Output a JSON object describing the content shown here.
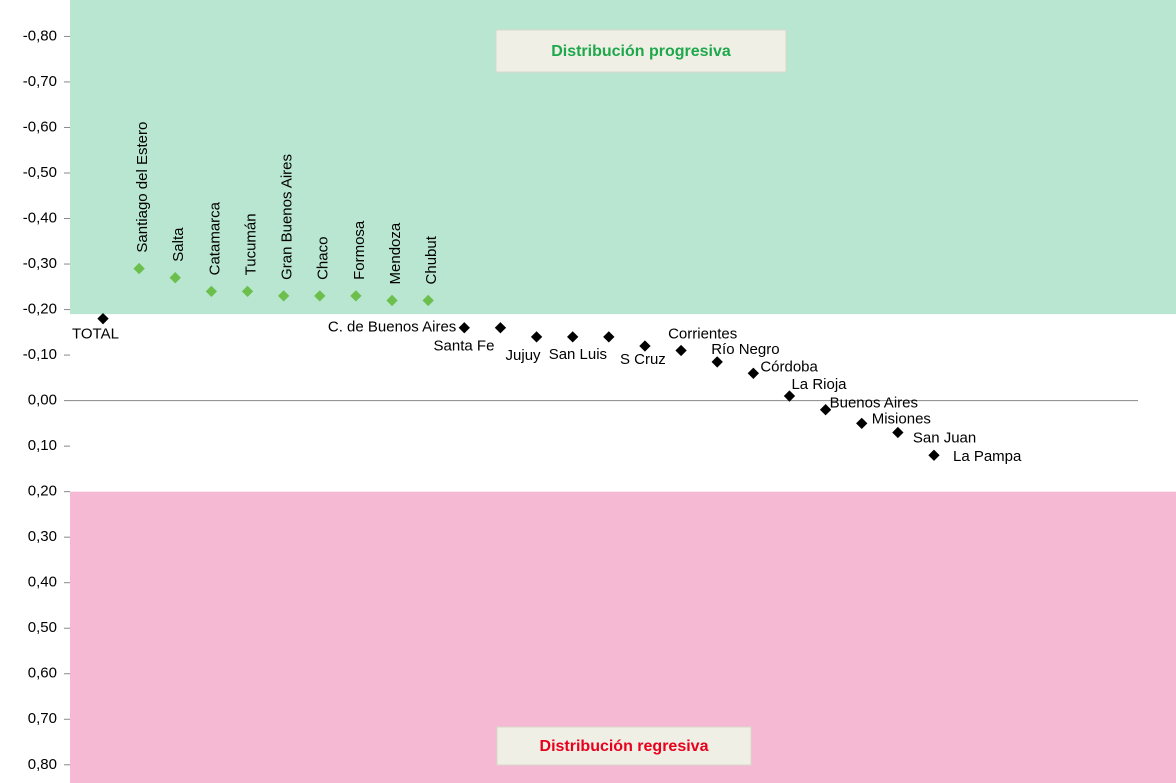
{
  "chart_data": {
    "type": "scatter",
    "categories": [
      "TOTAL",
      "Santiago del Estero",
      "Salta",
      "Catamarca",
      "Tucumán",
      "Gran Buenos Aires",
      "Chaco",
      "Formosa",
      "Mendoza",
      "Chubut",
      "C. de Buenos Aires",
      "Santa Fe",
      "Jujuy",
      "San Luis",
      null,
      "S Cruz",
      "Corrientes",
      "Río Negro",
      "Córdoba",
      "La Rioja",
      "Buenos Aires",
      "Misiones",
      "San Juan",
      "La Pampa"
    ],
    "series": [
      {
        "color": "#6cbf4c",
        "values": [
          null,
          -0.29,
          -0.27,
          -0.24,
          -0.24,
          -0.23,
          -0.23,
          -0.23,
          -0.22,
          -0.22,
          null,
          null,
          null,
          null,
          null,
          null,
          null,
          null,
          null,
          null,
          null,
          null,
          null,
          null
        ]
      },
      {
        "color": "#000000",
        "values": [
          -0.18,
          null,
          null,
          null,
          null,
          null,
          null,
          null,
          null,
          null,
          -0.16,
          -0.16,
          -0.14,
          -0.14,
          -0.14,
          -0.12,
          -0.11,
          -0.085,
          -0.06,
          -0.01,
          0.02,
          0.05,
          0.07,
          0.12
        ]
      }
    ],
    "bands": [
      {
        "label": "Distribución progresiva",
        "from": -0.88,
        "to": -0.19,
        "color": "#b8e6d1",
        "label_color": "#1ea84c"
      },
      {
        "label": "Distribución regresiva",
        "from": 0.2,
        "to": 0.84,
        "color": "#f5b9d3",
        "label_color": "#e8001c"
      }
    ],
    "ylim": [
      -0.88,
      0.84
    ],
    "yticks": [
      {
        "value": -0.8,
        "label": "-0,80"
      },
      {
        "value": -0.7,
        "label": "-0,70"
      },
      {
        "value": -0.6,
        "label": "-0,60"
      },
      {
        "value": -0.5,
        "label": "-0,50"
      },
      {
        "value": -0.4,
        "label": "-0,40"
      },
      {
        "value": -0.3,
        "label": "-0,30"
      },
      {
        "value": -0.2,
        "label": "-0,20"
      },
      {
        "value": -0.1,
        "label": "-0,10"
      },
      {
        "value": 0,
        "label": "0,00"
      },
      {
        "value": 0.1,
        "label": "0,10"
      },
      {
        "value": 0.2,
        "label": "0,20"
      },
      {
        "value": 0.3,
        "label": "0,30"
      },
      {
        "value": 0.4,
        "label": "0,40"
      },
      {
        "value": 0.5,
        "label": "0,50"
      },
      {
        "value": 0.6,
        "label": "0,60"
      },
      {
        "value": 0.7,
        "label": "0,70"
      },
      {
        "value": 0.8,
        "label": "0,80"
      }
    ]
  }
}
